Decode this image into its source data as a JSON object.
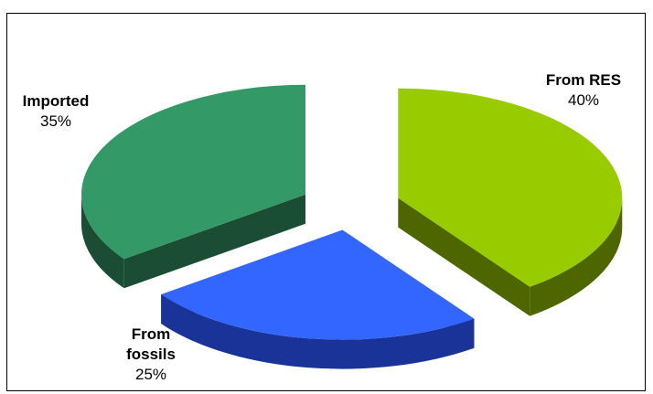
{
  "chart_data": {
    "type": "pie",
    "title": "",
    "slices": [
      {
        "label": "From RES",
        "value": 40,
        "value_label": "40%",
        "color": "#99cc00",
        "side_color": "#4d6600"
      },
      {
        "label": "From fossils",
        "value": 25,
        "value_label": "25%",
        "color": "#3366ff",
        "side_color": "#1a3399"
      },
      {
        "label": "Imported",
        "value": 35,
        "value_label": "35%",
        "color": "#339966",
        "side_color": "#1a4d33"
      }
    ],
    "exploded": true,
    "three_d": true,
    "legend": "none"
  }
}
